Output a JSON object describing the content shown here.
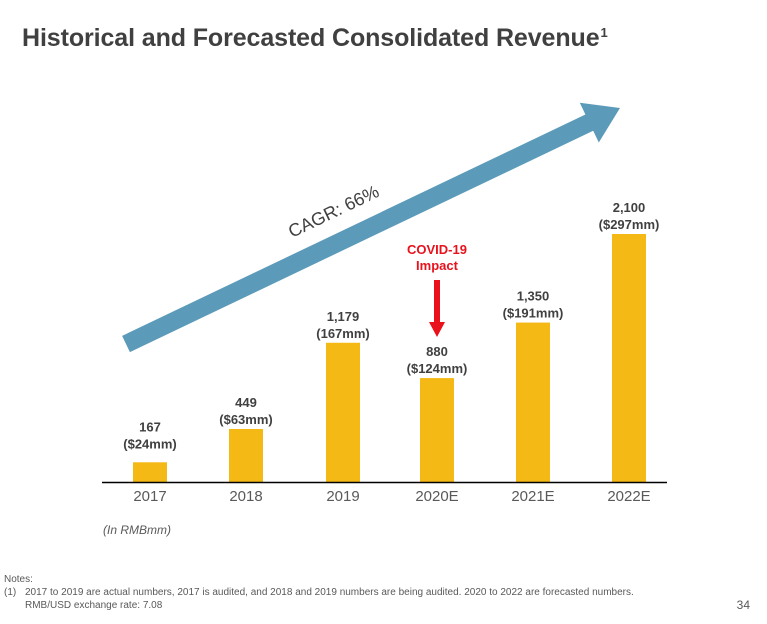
{
  "slide": {
    "title": "Historical and Forecasted Consolidated Revenue",
    "title_footnote_marker": "1",
    "unit_note": "(In RMBmm)",
    "notes_heading": "Notes:",
    "notes": [
      {
        "marker": "(1)",
        "lines": [
          "2017 to 2019 are actual numbers, 2017 is audited, and 2018 and 2019 numbers are being audited. 2020 to 2022 are forecasted numbers.",
          "RMB/USD exchange rate: 7.08"
        ]
      }
    ],
    "page_number": "34"
  },
  "colors": {
    "bar": "#F5B915",
    "arrow": "#5B9BB9",
    "covid": "#E8111C",
    "text": "#404040",
    "axis": "#000000"
  },
  "chart_data": {
    "type": "bar",
    "title": "Historical and Forecasted Consolidated Revenue",
    "xlabel": "",
    "ylabel": "(In RMBmm)",
    "grid": false,
    "categories": [
      "2017",
      "2018",
      "2019",
      "2020E",
      "2021E",
      "2022E"
    ],
    "values": [
      167,
      449,
      1179,
      880,
      1350,
      2100
    ],
    "value_labels": [
      "167",
      "449",
      "1,179",
      "880",
      "1,350",
      "2,100"
    ],
    "usd_labels": [
      "($24mm)",
      "($63mm)",
      "(167mm)",
      "($124mm)",
      "($191mm)",
      "($297mm)"
    ],
    "ylim": [
      0,
      2100
    ],
    "annotations": {
      "cagr": {
        "text": "CAGR: 66%",
        "from_category": "2017",
        "to_category": "2022E"
      },
      "covid": {
        "text_lines": [
          "COVID-19",
          "Impact"
        ],
        "category": "2020E"
      }
    }
  }
}
